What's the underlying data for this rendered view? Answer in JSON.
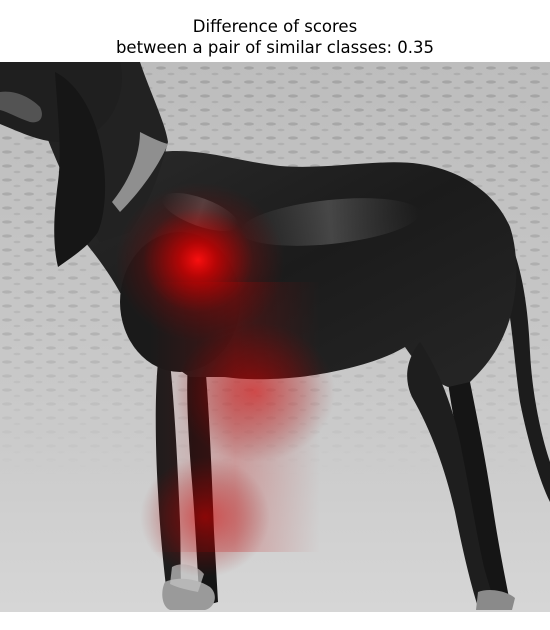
{
  "figure": {
    "title_line1": "Difference of scores",
    "title_line2": "between a pair of similar classes: 0.35"
  },
  "image": {
    "subject": "dog",
    "overlay": "red-saliency-heatmap",
    "colors": {
      "heat": "#ff0000",
      "ground": "#b9b9b9",
      "dog": "#1e1e1e"
    }
  }
}
